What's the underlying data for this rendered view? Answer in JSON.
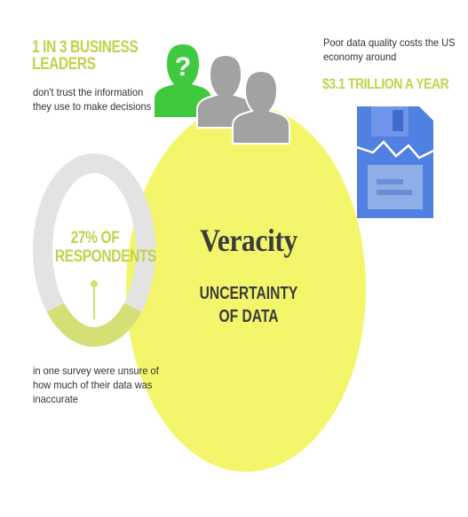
{
  "colors": {
    "accent_yellow": "#f3f56b",
    "accent_green_text": "#c3d24b",
    "ring_gray": "#e3e3e3",
    "ring_fill": "#d4e075",
    "person_green": "#3ec93e",
    "person_gray": "#a2a2a2",
    "disk_blue": "#4f80e2",
    "text_dark": "#333333"
  },
  "topic": {
    "title": "Veracity",
    "subtitle_line1": "UNCERTAINTY",
    "subtitle_line2": "OF DATA"
  },
  "stat_leaders": {
    "headline_line1": "1 IN 3 BUSINESS",
    "headline_line2": "LEADERS",
    "desc_line1": "don't trust the information",
    "desc_line2": "they use to make decisions"
  },
  "stat_cost": {
    "desc_line1": "Poor data quality costs the US",
    "desc_line2": "economy around",
    "value": "$3.1 TRILLION A YEAR"
  },
  "stat_respondents": {
    "headline_line1": "27% OF",
    "headline_line2": "RESPONDENTS",
    "share": 0.27,
    "desc_line1": "in one survey were unsure of",
    "desc_line2": "how much of their data was",
    "desc_line3": "inaccurate"
  },
  "icons": {
    "people": "person-silhouette-icon",
    "question": "question-mark-icon",
    "storage": "broken-floppy-disk-icon"
  }
}
